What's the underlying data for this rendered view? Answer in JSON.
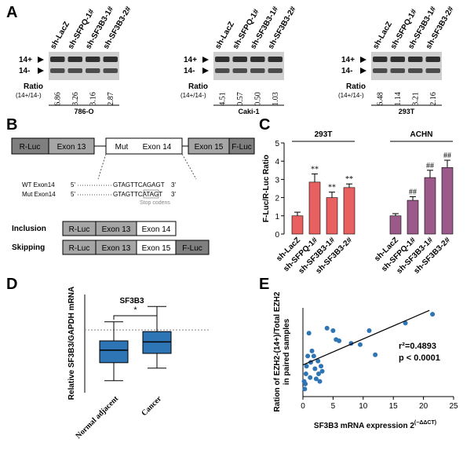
{
  "panel_labels": [
    "A",
    "B",
    "C",
    "D",
    "E"
  ],
  "panel_a": {
    "blots": [
      {
        "lanes": [
          "sh-LacZ",
          "sh-SFPQ-1#",
          "sh-SF3B3-1#",
          "sh-SF3B3-2#"
        ],
        "band_top": "14+",
        "band_bottom": "14-",
        "ratio_label": "Ratio",
        "ratio_sub": "(14+/14-)",
        "ratios": [
          "6.86",
          "3.26",
          "3.16",
          "2.87"
        ],
        "cell_line": "786-O"
      },
      {
        "lanes": [
          "sh-LacZ",
          "sh-SFPQ-1#",
          "sh-SF3B3-1#",
          "sh-SF3B3-2#"
        ],
        "band_top": "14+",
        "band_bottom": "14-",
        "ratio_label": "Ratio",
        "ratio_sub": "(14+/14-)",
        "ratios": [
          "4.51",
          "0.57",
          "0.50",
          "1.03"
        ],
        "cell_line": "Caki-1"
      },
      {
        "lanes": [
          "sh-LacZ",
          "sh-SFPQ-1#",
          "sh-SF3B3-1#",
          "sh-SF3B3-2#"
        ],
        "band_top": "14+",
        "band_bottom": "14-",
        "ratio_label": "Ratio",
        "ratio_sub": "(14+/14-)",
        "ratios": [
          "6.48",
          "1.14",
          "3.21",
          "2.16"
        ],
        "cell_line": "293T"
      }
    ]
  },
  "panel_b": {
    "construct": [
      "R-Luc",
      "Exon 13",
      "Mut",
      "Exon 14",
      "Exon 15",
      "F-Luc"
    ],
    "wt": {
      "label": "WT Exon14",
      "five": "5'",
      "seq": "GTAGTTCAGAGT",
      "three": "3'"
    },
    "mut": {
      "label": "Mut Exon14",
      "five": "5'",
      "seq": "GTAGTTCATAGT",
      "three": "3'"
    },
    "stop_note": "Stop codens",
    "inclusion": {
      "label": "Inclusion",
      "parts": [
        "R-Luc",
        "Exon 13",
        "Exon 14"
      ]
    },
    "skipping": {
      "label": "Skipping",
      "parts": [
        "R-Luc",
        "Exon 13",
        "Exon 15",
        "F-Luc"
      ]
    }
  },
  "chart_data": [
    {
      "type": "bar",
      "ylabel": "F-Luc/R-Luc Ratio",
      "categories": [
        "sh-LacZ",
        "sh-SFPQ-1#",
        "sh-SF3B3-1#",
        "sh-SF3B3-2#"
      ],
      "series": [
        {
          "name": "293T",
          "color": "#e8605f",
          "values": [
            1.0,
            2.85,
            2.0,
            2.55
          ],
          "errors": [
            0.2,
            0.45,
            0.3,
            0.2
          ],
          "annotations": [
            null,
            "**",
            "**",
            "**"
          ]
        },
        {
          "name": "ACHN",
          "color": "#9c5a8b",
          "values": [
            1.0,
            1.85,
            3.1,
            3.65
          ],
          "errors": [
            0.12,
            0.2,
            0.4,
            0.4
          ],
          "annotations": [
            null,
            "##",
            "##",
            "##"
          ]
        }
      ],
      "ylim": [
        0,
        5
      ],
      "yticks": [
        0,
        1,
        2,
        3,
        4,
        5
      ]
    },
    {
      "type": "box",
      "title": "SF3B3",
      "ylabel": "Relative SF3B3/GAPDH mRNA",
      "categories": [
        "Normal adjacent",
        "Cancer"
      ],
      "color": "#2e75b6",
      "boxes": [
        {
          "min": -0.8,
          "q1": 2.5,
          "median": 4.8,
          "q3": 6.5,
          "max": 10.0
        },
        {
          "min": 1.5,
          "q1": 4.2,
          "median": 6.3,
          "q3": 8.2,
          "max": 12.8
        }
      ],
      "reference_line": 8.5,
      "significance": "*",
      "ylim": [
        -3,
        15
      ]
    },
    {
      "type": "scatter",
      "xlabel": "SF3B3 mRNA expression 2",
      "xlabel_superscript": "(−ΔΔCT)",
      "ylabel": [
        "Ration of EZH2-(14+)/Total EZH2",
        "in paired samples"
      ],
      "color": "#2e75b6",
      "x": [
        0.2,
        0.3,
        0.5,
        0.6,
        0.8,
        1.0,
        1.2,
        1.5,
        1.8,
        2.0,
        2.2,
        2.5,
        2.8,
        3.0,
        3.2,
        4.0,
        5.0,
        5.5,
        6.0,
        8.0,
        9.5,
        11.0,
        12.0,
        17.0,
        21.5,
        0.4,
        1.3,
        2.6
      ],
      "y": [
        1.2,
        0.6,
        1.8,
        2.4,
        3.2,
        5.0,
        1.5,
        3.6,
        3.2,
        2.2,
        1.4,
        2.8,
        1.2,
        2.4,
        2.0,
        5.4,
        5.2,
        4.5,
        4.4,
        4.2,
        4.1,
        5.2,
        3.3,
        5.8,
        6.5,
        1.0,
        2.7,
        1.8
      ],
      "fit": {
        "x": [
          0,
          21
        ],
        "y": [
          2.5,
          6.8
        ]
      },
      "annotations": [
        "r²=0.4893",
        "p < 0.0001"
      ],
      "xlim": [
        0,
        25
      ],
      "xticks": [
        0,
        5,
        10,
        15,
        20,
        25
      ],
      "ylim": [
        0,
        7
      ]
    }
  ]
}
